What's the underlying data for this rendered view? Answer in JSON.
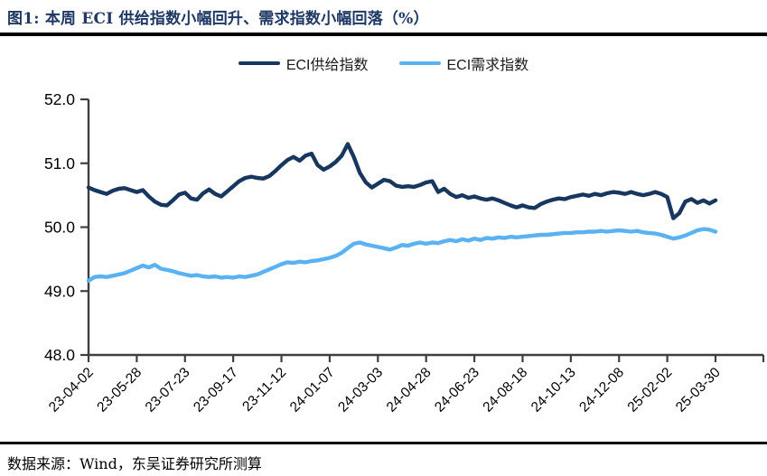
{
  "figure": {
    "title": "图1:  本周 ECI 供给指数小幅回升、需求指数小幅回落（%）",
    "source": "数据来源：Wind，东吴证券研究所测算"
  },
  "legend": [
    {
      "label": "ECI供给指数",
      "color": "#17375E"
    },
    {
      "label": "ECI需求指数",
      "color": "#5BB2F2"
    }
  ],
  "chart_data": {
    "type": "line",
    "title": "本周ECI供给指数小幅回升、需求指数小幅回落（%）",
    "xlabel": "",
    "ylabel": "",
    "ylim": [
      48.0,
      52.0
    ],
    "y_ticks": [
      52.0,
      51.0,
      50.0,
      49.0,
      48.0
    ],
    "y_tick_format": "0.1f",
    "grid": false,
    "legend_position": "top-center",
    "x_unit": "week",
    "x_label_every_n_points": 8,
    "x_label_rotation": 45,
    "x_tick_labels": [
      "23-04-02",
      "23-05-28",
      "23-07-23",
      "23-09-17",
      "23-11-12",
      "24-01-07",
      "24-03-03",
      "24-04-28",
      "24-06-23",
      "24-08-18",
      "24-10-13",
      "24-12-08",
      "25-02-02",
      "25-03-30"
    ],
    "series": [
      {
        "name": "ECI供给指数",
        "color": "#17375E",
        "values": [
          50.62,
          50.58,
          50.55,
          50.52,
          50.57,
          50.6,
          50.61,
          50.58,
          50.55,
          50.58,
          50.48,
          50.4,
          50.35,
          50.34,
          50.42,
          50.51,
          50.54,
          50.45,
          50.43,
          50.53,
          50.59,
          50.52,
          50.48,
          50.56,
          50.64,
          50.72,
          50.77,
          50.79,
          50.77,
          50.76,
          50.8,
          50.88,
          50.97,
          51.05,
          51.1,
          51.04,
          51.12,
          51.15,
          50.97,
          50.9,
          50.95,
          51.02,
          51.12,
          51.3,
          51.1,
          50.85,
          50.7,
          50.62,
          50.68,
          50.74,
          50.72,
          50.65,
          50.63,
          50.64,
          50.63,
          50.66,
          50.7,
          50.72,
          50.55,
          50.6,
          50.52,
          50.47,
          50.5,
          50.46,
          50.48,
          50.45,
          50.43,
          50.45,
          50.42,
          50.38,
          50.34,
          50.31,
          50.34,
          50.31,
          50.3,
          50.36,
          50.4,
          50.43,
          50.45,
          50.44,
          50.47,
          50.49,
          50.51,
          50.49,
          50.52,
          50.5,
          50.53,
          50.55,
          50.54,
          50.52,
          50.55,
          50.52,
          50.5,
          50.52,
          50.55,
          50.52,
          50.47,
          50.14,
          50.22,
          50.4,
          50.44,
          50.38,
          50.42,
          50.37,
          50.42
        ]
      },
      {
        "name": "ECI需求指数",
        "color": "#5BB2F2",
        "values": [
          49.16,
          49.22,
          49.23,
          49.22,
          49.24,
          49.26,
          49.28,
          49.32,
          49.36,
          49.4,
          49.37,
          49.41,
          49.35,
          49.33,
          49.31,
          49.28,
          49.26,
          49.24,
          49.25,
          49.23,
          49.22,
          49.23,
          49.21,
          49.22,
          49.21,
          49.23,
          49.22,
          49.24,
          49.26,
          49.3,
          49.34,
          49.38,
          49.42,
          49.45,
          49.44,
          49.46,
          49.45,
          49.47,
          49.48,
          49.5,
          49.52,
          49.55,
          49.6,
          49.67,
          49.74,
          49.76,
          49.73,
          49.71,
          49.69,
          49.67,
          49.65,
          49.68,
          49.72,
          49.71,
          49.74,
          49.76,
          49.74,
          49.76,
          49.75,
          49.78,
          49.8,
          49.78,
          49.81,
          49.79,
          49.82,
          49.8,
          49.83,
          49.82,
          49.84,
          49.83,
          49.85,
          49.84,
          49.85,
          49.86,
          49.87,
          49.88,
          49.88,
          49.89,
          49.9,
          49.91,
          49.91,
          49.92,
          49.92,
          49.93,
          49.93,
          49.94,
          49.93,
          49.94,
          49.95,
          49.94,
          49.93,
          49.94,
          49.92,
          49.91,
          49.9,
          49.88,
          49.85,
          49.82,
          49.84,
          49.87,
          49.91,
          49.95,
          49.97,
          49.96,
          49.93
        ]
      }
    ]
  }
}
